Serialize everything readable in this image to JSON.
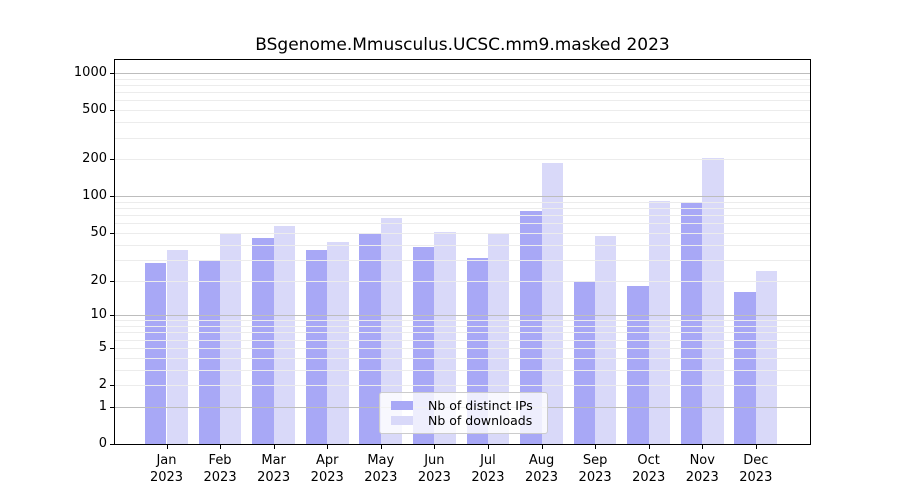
{
  "chart_data": {
    "type": "bar",
    "title": "BSgenome.Mmusculus.UCSC.mm9.masked 2023",
    "categories": [
      "Jan",
      "Feb",
      "Mar",
      "Apr",
      "May",
      "Jun",
      "Jul",
      "Aug",
      "Sep",
      "Oct",
      "Nov",
      "Dec"
    ],
    "year_label": "2023",
    "series": [
      {
        "name": "Nb of distinct IPs",
        "color": "#a8a8f6",
        "values": [
          28,
          30,
          45,
          36,
          49,
          38,
          31,
          76,
          20,
          18,
          88,
          16
        ]
      },
      {
        "name": "Nb of downloads",
        "color": "#d9d9f9",
        "values": [
          36,
          50,
          57,
          42,
          66,
          51,
          50,
          186,
          47,
          92,
          205,
          24
        ]
      }
    ],
    "xlabel": "",
    "ylabel": "",
    "y_ticks": [
      0,
      1,
      2,
      5,
      10,
      20,
      50,
      100,
      200,
      500,
      1000
    ],
    "y_scale": "log1p",
    "ylim": [
      0,
      1275
    ],
    "grid": true,
    "legend_position": "lower center",
    "colors": {
      "major_grid": "#bdbdbd",
      "minor_grid": "#ececec",
      "axis": "#000000",
      "text": "#000000"
    }
  }
}
